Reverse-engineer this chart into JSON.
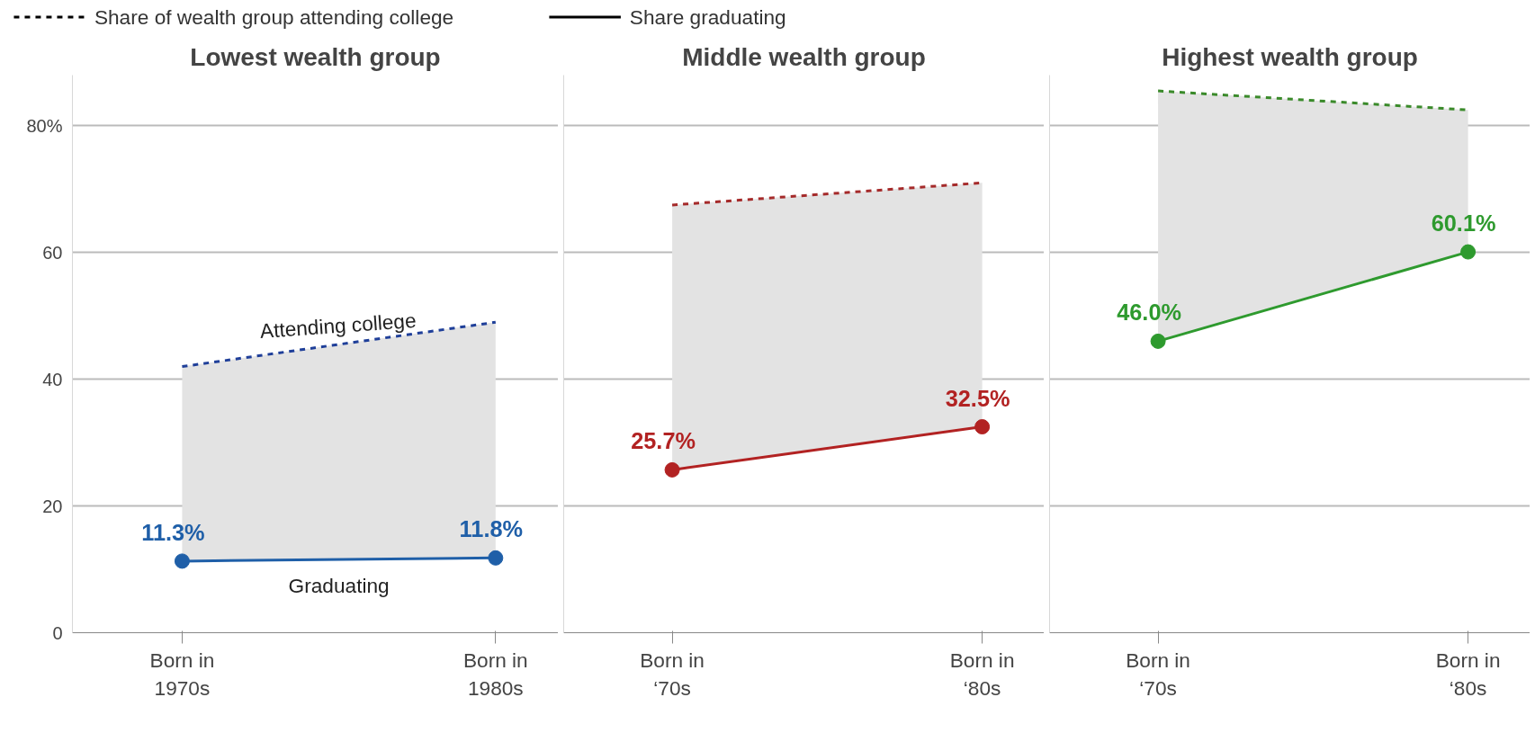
{
  "chart_data": [
    {
      "type": "line",
      "title": "Lowest wealth group",
      "categories": [
        "Born in\n1970s",
        "Born in\n1980s"
      ],
      "series": [
        {
          "color": "#1f3f99",
          "values": [
            42,
            49
          ],
          "line_style": "dashed",
          "lower": [
            11.3,
            11.8
          ],
          "upper": [
            42,
            49
          ]
        },
        {
          "color": "#1f5fa8",
          "values": [
            11.3,
            11.8
          ],
          "marker": "circle",
          "value_labels": [
            "11.3%",
            "11.8%"
          ]
        }
      ],
      "ylim": [
        0,
        88
      ],
      "yticks": [
        0,
        20,
        40,
        60,
        {
          "value": 80,
          "label": "80%"
        }
      ],
      "grid": "y",
      "annotations": [
        "Share of wealth group attending college",
        "Share graduating",
        "Attending college",
        "Graduating"
      ]
    },
    {
      "type": "line",
      "title": "Middle wealth group",
      "categories": [
        "Born in\n‘70s",
        "Born in\n‘80s"
      ],
      "series": [
        {
          "color": "#a52a2a",
          "values": [
            67.5,
            71
          ],
          "line_style": "dashed",
          "lower": [
            25.7,
            32.5
          ],
          "upper": [
            67.5,
            71
          ]
        },
        {
          "color": "#b22222",
          "values": [
            25.7,
            32.5
          ],
          "marker": "circle",
          "value_labels": [
            "25.7%",
            "32.5%"
          ]
        }
      ],
      "ylim": [
        0,
        88
      ],
      "yticks": [
        0,
        20,
        40,
        60,
        80
      ],
      "grid": "y",
      "tick_labels": "x"
    },
    {
      "type": "line",
      "title": "Highest wealth group",
      "categories": [
        "Born in\n‘70s",
        "Born in\n‘80s"
      ],
      "series": [
        {
          "color": "#3a8a2a",
          "values": [
            85.5,
            82.5
          ],
          "line_style": "dashed",
          "lower": [
            46.0,
            60.1
          ],
          "upper": [
            85.5,
            82.5
          ]
        },
        {
          "color": "#2e9a2e",
          "values": [
            46.0,
            60.1
          ],
          "marker": "circle",
          "value_labels": [
            "46.0%",
            "60.1%"
          ]
        }
      ],
      "ylim": [
        0,
        88
      ],
      "yticks": [
        0,
        20,
        40,
        60,
        80
      ],
      "grid": "y",
      "tick_labels": "x"
    }
  ]
}
